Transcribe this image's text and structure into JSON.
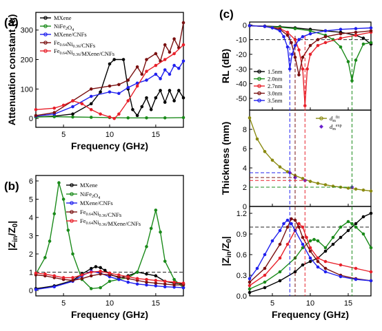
{
  "chart_data": [
    {
      "id": "a",
      "panel_label": "(a)",
      "type": "line",
      "xlabel": "Frequency (GHz)",
      "ylabel": "Attenuation constant (α)",
      "xlim": [
        2,
        18
      ],
      "ylim": [
        -30,
        360
      ],
      "xticks": [
        5,
        10,
        15
      ],
      "yticks": [
        0,
        100,
        200,
        300
      ],
      "legend_position": "top-left",
      "series": [
        {
          "name": "MXene",
          "color": "#000000",
          "x": [
            2,
            4,
            6,
            8,
            9,
            10,
            10.5,
            11.5,
            12,
            12.5,
            13,
            13.5,
            14,
            14.5,
            15,
            15.5,
            16,
            16.5,
            17,
            17.5,
            18
          ],
          "y": [
            5,
            8,
            15,
            50,
            90,
            185,
            200,
            200,
            100,
            30,
            10,
            40,
            70,
            30,
            70,
            95,
            55,
            95,
            60,
            95,
            70
          ]
        },
        {
          "name": "NiFe2O4",
          "color": "#1a8a1a",
          "x": [
            2,
            4,
            6,
            8,
            10,
            12,
            14,
            16,
            18
          ],
          "y": [
            5,
            6,
            5,
            4,
            3,
            2,
            2,
            2,
            3
          ]
        },
        {
          "name": "MXene/CNFs",
          "color": "#2020ee",
          "x": [
            2,
            4,
            6,
            8,
            10,
            11,
            12,
            13,
            14,
            15,
            15.5,
            16,
            16.5,
            17,
            17.5,
            18
          ],
          "y": [
            8,
            15,
            40,
            75,
            90,
            85,
            105,
            120,
            130,
            150,
            135,
            165,
            150,
            180,
            170,
            195
          ]
        },
        {
          "name": "Fe0.64Ni0.36/CNFs",
          "color": "#7a1010",
          "x": [
            2,
            4,
            6,
            8,
            10,
            11,
            12,
            13,
            13.5,
            14,
            15,
            15.5,
            16,
            16.5,
            17,
            17.5,
            18
          ],
          "y": [
            10,
            20,
            60,
            100,
            110,
            115,
            130,
            175,
            150,
            200,
            220,
            195,
            250,
            225,
            270,
            240,
            325
          ]
        },
        {
          "name": "Fe0.64Ni0.36/MXene/CNFs",
          "color": "#e8202a",
          "x": [
            2,
            4,
            5,
            6,
            7,
            8,
            9,
            10,
            10.5,
            11,
            12,
            13,
            14,
            15,
            16,
            17,
            18
          ],
          "y": [
            30,
            35,
            45,
            60,
            50,
            30,
            15,
            5,
            0,
            15,
            60,
            110,
            160,
            180,
            200,
            220,
            250
          ]
        }
      ]
    },
    {
      "id": "b",
      "panel_label": "(b)",
      "type": "line",
      "xlabel": "Frequency (GHz)",
      "ylabel": "|Zin/Z0|",
      "xlim": [
        2,
        18
      ],
      "ylim": [
        -0.3,
        6.3
      ],
      "xticks": [
        5,
        10,
        15
      ],
      "yticks": [
        0,
        1,
        2,
        3,
        4,
        5,
        6
      ],
      "reference_y": 1,
      "legend_position": "top-right",
      "series": [
        {
          "name": "MXene",
          "color": "#000000",
          "x": [
            2,
            4,
            6,
            7,
            8,
            8.5,
            9,
            9.5,
            10,
            11,
            12,
            13,
            14,
            15,
            16,
            17,
            18
          ],
          "y": [
            0.1,
            0.25,
            0.55,
            0.9,
            1.2,
            1.3,
            1.25,
            1.1,
            0.9,
            0.7,
            0.8,
            1.0,
            0.9,
            0.8,
            0.5,
            0.4,
            0.35
          ]
        },
        {
          "name": "NiFe2O4",
          "color": "#1a8a1a",
          "x": [
            2,
            3,
            3.5,
            4,
            4.5,
            5,
            5.5,
            6,
            7,
            8,
            9,
            10,
            11,
            12,
            13,
            14,
            14.5,
            15,
            15.5,
            16,
            17,
            18
          ],
          "y": [
            0.9,
            1.8,
            2.7,
            4.2,
            5.9,
            5.0,
            3.3,
            2.0,
            0.6,
            0.1,
            0.15,
            0.5,
            0.6,
            0.7,
            1.0,
            2.4,
            3.4,
            4.4,
            3.2,
            1.6,
            0.6,
            0.15
          ]
        },
        {
          "name": "MXene/CNFs",
          "color": "#2020ee",
          "x": [
            2,
            4,
            6,
            7,
            8,
            9,
            10,
            11,
            12,
            13,
            14,
            15,
            16,
            17,
            18
          ],
          "y": [
            0.05,
            0.2,
            0.5,
            0.8,
            1.05,
            0.95,
            0.75,
            0.6,
            0.45,
            0.35,
            0.3,
            0.25,
            0.2,
            0.18,
            0.15
          ]
        },
        {
          "name": "Fe0.64Ni0.36/CNFs",
          "color": "#7a1010",
          "x": [
            2,
            3,
            4,
            5,
            6,
            7,
            8,
            9,
            10,
            11,
            12,
            13,
            14,
            15,
            16,
            17,
            18
          ],
          "y": [
            0.85,
            0.8,
            0.7,
            0.6,
            0.55,
            0.65,
            0.8,
            0.9,
            0.85,
            0.75,
            0.65,
            0.55,
            0.45,
            0.4,
            0.35,
            0.3,
            0.3
          ]
        },
        {
          "name": "Fe0.64Ni0.36/MXene/CNFs",
          "color": "#e8202a",
          "x": [
            2,
            3,
            4,
            5,
            6,
            7,
            8,
            9,
            10,
            11,
            12,
            13,
            14,
            15,
            16,
            17,
            18
          ],
          "y": [
            0.95,
            0.9,
            0.8,
            0.7,
            0.7,
            0.85,
            1.0,
            1.05,
            0.95,
            0.85,
            0.75,
            0.65,
            0.6,
            0.55,
            0.5,
            0.45,
            0.4
          ]
        }
      ]
    },
    {
      "id": "c-rl",
      "panel_label": "(c)",
      "type": "line",
      "ylabel": "RL (dB)",
      "xlim": [
        2,
        18
      ],
      "ylim": [
        -58,
        2
      ],
      "yticks": [
        0,
        -10,
        -20,
        -30,
        -40,
        -50
      ],
      "reference_y": -10,
      "legend_position": "bottom-left",
      "series": [
        {
          "name": "1.5 nm",
          "color": "#000000",
          "x": [
            2,
            4,
            6,
            8,
            10,
            12,
            14,
            16,
            17,
            18
          ],
          "y": [
            -0.5,
            -0.8,
            -1.2,
            -2,
            -3,
            -4,
            -5,
            -7,
            -9,
            -13
          ]
        },
        {
          "name": "2.0 nm",
          "color": "#1a8a1a",
          "x": [
            2,
            4,
            6,
            8,
            10,
            12,
            13,
            14,
            15,
            15.5,
            16,
            17,
            18
          ],
          "y": [
            -0.5,
            -1,
            -1.5,
            -2.5,
            -4,
            -7,
            -10,
            -15,
            -25,
            -38,
            -24,
            -13,
            -12
          ]
        },
        {
          "name": "2.7 nm",
          "color": "#e8202a",
          "x": [
            2,
            4,
            6,
            7,
            8,
            8.5,
            9,
            9.3,
            9.6,
            10,
            11,
            12,
            14,
            16,
            18
          ],
          "y": [
            -0.5,
            -1,
            -2.5,
            -5,
            -10,
            -17,
            -30,
            -55,
            -30,
            -20,
            -14,
            -12,
            -9,
            -7,
            -5
          ]
        },
        {
          "name": "3.0 nm",
          "color": "#7a1010",
          "x": [
            2,
            4,
            6,
            7,
            7.5,
            8,
            8.5,
            9,
            10,
            11,
            12,
            14,
            16,
            18
          ],
          "y": [
            -0.5,
            -1,
            -3,
            -7,
            -12,
            -22,
            -34,
            -22,
            -14,
            -10,
            -8,
            -6,
            -5,
            -4
          ]
        },
        {
          "name": "3.5 nm",
          "color": "#2020ee",
          "x": [
            2,
            4,
            5,
            6,
            6.5,
            7,
            7.3,
            7.6,
            8,
            8.5,
            9,
            10,
            12,
            14,
            16,
            18
          ],
          "y": [
            -0.5,
            -1,
            -2,
            -4,
            -8,
            -15,
            -30,
            -20,
            -14,
            -10,
            -8,
            -6,
            -4,
            -3,
            -2.5,
            -2
          ]
        }
      ]
    },
    {
      "id": "c-thickness",
      "type": "line",
      "ylabel": "Thickness (mm)",
      "xlim": [
        2,
        18
      ],
      "ylim": [
        0,
        10
      ],
      "yticks": [
        0,
        2,
        4,
        6,
        8
      ],
      "legend_position": "top-right",
      "series": [
        {
          "name": "dm^fit",
          "label_main": "d",
          "label_sub": "m",
          "label_sup": "fit",
          "color": "#8a8a10",
          "x": [
            2,
            3,
            4,
            5,
            6,
            7,
            8,
            9,
            10,
            11,
            12,
            13,
            14,
            15,
            16,
            17,
            18
          ],
          "y": [
            9.2,
            7.0,
            5.7,
            4.8,
            4.1,
            3.6,
            3.2,
            2.9,
            2.6,
            2.4,
            2.25,
            2.1,
            2.0,
            1.9,
            1.8,
            1.7,
            1.6
          ]
        },
        {
          "name": "dm^exp",
          "label_main": "d",
          "label_sub": "m",
          "label_sup": "exp",
          "color": "#6a20cc",
          "x": [
            7.3,
            8,
            9.3,
            15.5
          ],
          "y": [
            3.5,
            3.0,
            2.7,
            2.0
          ]
        }
      ]
    },
    {
      "id": "c-zin",
      "type": "line",
      "xlabel": "Frequency (GHz)",
      "ylabel": "|Zin/Z0|",
      "xlim": [
        2,
        18
      ],
      "ylim": [
        0,
        1.3
      ],
      "xticks": [
        5,
        10,
        15
      ],
      "yticks": [
        0.0,
        0.3,
        0.6,
        0.9,
        1.2
      ],
      "reference_y": 1.0,
      "series": [
        {
          "name": "1.5 nm",
          "color": "#000000",
          "x": [
            2,
            4,
            6,
            8,
            9,
            10,
            11,
            12,
            13,
            14,
            15,
            16,
            17,
            18
          ],
          "y": [
            0.05,
            0.12,
            0.22,
            0.35,
            0.45,
            0.5,
            0.55,
            0.65,
            0.75,
            0.85,
            0.95,
            1.05,
            1.15,
            1.2
          ]
        },
        {
          "name": "2.0 nm",
          "color": "#1a8a1a",
          "x": [
            2,
            4,
            6,
            8,
            9,
            10,
            10.5,
            11,
            12,
            13,
            14,
            15,
            15.5,
            16,
            17,
            18
          ],
          "y": [
            0.1,
            0.2,
            0.35,
            0.55,
            0.7,
            0.8,
            0.82,
            0.8,
            0.7,
            0.85,
            1.0,
            1.08,
            1.05,
            1.0,
            0.9,
            0.7
          ]
        },
        {
          "name": "2.7 nm",
          "color": "#e8202a",
          "x": [
            2,
            4,
            6,
            7,
            8,
            8.5,
            9,
            9.5,
            10,
            11,
            12,
            14,
            16,
            18
          ],
          "y": [
            0.15,
            0.3,
            0.55,
            0.75,
            0.95,
            1.05,
            1.0,
            0.85,
            0.7,
            0.55,
            0.5,
            0.45,
            0.4,
            0.35
          ]
        },
        {
          "name": "3.0 nm",
          "color": "#7a1010",
          "x": [
            2,
            4,
            6,
            7,
            7.5,
            8,
            8.5,
            9,
            10,
            11,
            12,
            14,
            16,
            18
          ],
          "y": [
            0.2,
            0.4,
            0.75,
            1.0,
            1.12,
            1.1,
            1.0,
            0.85,
            0.65,
            0.5,
            0.4,
            0.3,
            0.25,
            0.22
          ]
        },
        {
          "name": "3.5 nm",
          "color": "#2020ee",
          "x": [
            2,
            3,
            4,
            5,
            6,
            6.5,
            7,
            7.5,
            8,
            9,
            10,
            11,
            12,
            14,
            16,
            18
          ],
          "y": [
            0.25,
            0.4,
            0.6,
            0.8,
            0.95,
            1.05,
            1.1,
            1.05,
            0.95,
            0.75,
            0.55,
            0.42,
            0.35,
            0.28,
            0.24,
            0.22
          ]
        }
      ]
    }
  ]
}
